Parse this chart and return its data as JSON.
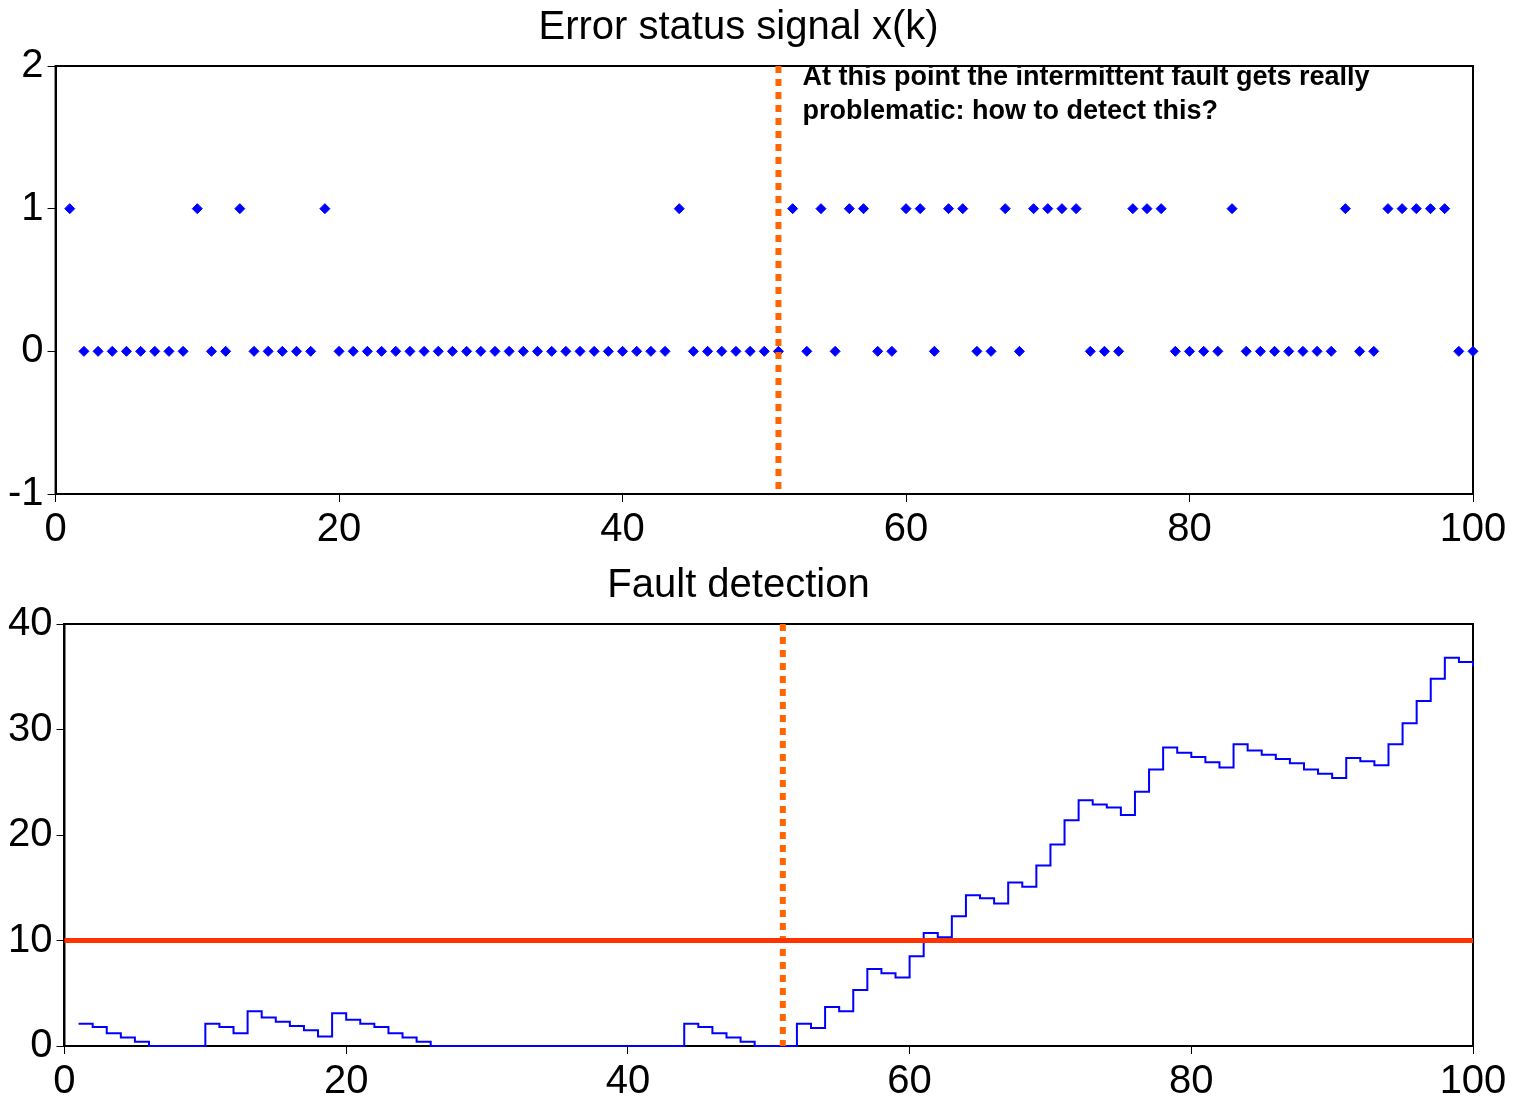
{
  "chart_data": [
    {
      "type": "scatter",
      "title": "Error status signal x(k)",
      "marker": "diamond",
      "grid": false,
      "legend": false,
      "x": [
        1,
        2,
        3,
        4,
        5,
        6,
        7,
        8,
        9,
        10,
        11,
        12,
        13,
        14,
        15,
        16,
        17,
        18,
        19,
        20,
        21,
        22,
        23,
        24,
        25,
        26,
        27,
        28,
        29,
        30,
        31,
        32,
        33,
        34,
        35,
        36,
        37,
        38,
        39,
        40,
        41,
        42,
        43,
        44,
        45,
        46,
        47,
        48,
        49,
        50,
        51,
        52,
        53,
        54,
        55,
        56,
        57,
        58,
        59,
        60,
        61,
        62,
        63,
        64,
        65,
        66,
        67,
        68,
        69,
        70,
        71,
        72,
        73,
        74,
        75,
        76,
        77,
        78,
        79,
        80,
        81,
        82,
        83,
        84,
        85,
        86,
        87,
        88,
        89,
        90,
        91,
        92,
        93,
        94,
        95,
        96,
        97,
        98,
        99,
        100
      ],
      "series": [
        {
          "color": "#0000ff",
          "values": [
            1,
            0,
            0,
            0,
            0,
            0,
            0,
            0,
            0,
            1,
            0,
            0,
            1,
            0,
            0,
            0,
            0,
            0,
            1,
            0,
            0,
            0,
            0,
            0,
            0,
            0,
            0,
            0,
            0,
            0,
            0,
            0,
            0,
            0,
            0,
            0,
            0,
            0,
            0,
            0,
            0,
            0,
            0,
            1,
            0,
            0,
            0,
            0,
            0,
            0,
            0,
            1,
            0,
            1,
            0,
            1,
            1,
            0,
            0,
            1,
            1,
            0,
            1,
            1,
            0,
            0,
            1,
            0,
            1,
            1,
            1,
            1,
            0,
            0,
            0,
            1,
            1,
            1,
            0,
            0,
            0,
            0,
            1,
            0,
            0,
            0,
            0,
            0,
            0,
            0,
            1,
            0,
            0,
            1,
            1,
            1,
            1,
            1,
            0,
            0
          ]
        }
      ],
      "xlim": [
        0,
        100
      ],
      "xticks": [
        0,
        20,
        40,
        60,
        80,
        100
      ],
      "ylim": [
        -1,
        2
      ],
      "yticks": [
        -1,
        0,
        1,
        2
      ],
      "ref_lines": [
        {
          "axis": "x",
          "value": 51,
          "color": "#ff6600",
          "line_style": "dotted"
        }
      ],
      "annotations": [
        {
          "text": "At this point the intermittent fault gets really problematic: how to detect this?",
          "x": 51,
          "y": 1.8
        }
      ]
    },
    {
      "type": "step",
      "title": "Fault detection",
      "grid": false,
      "legend": false,
      "marker": "none",
      "x": [
        1,
        2,
        3,
        4,
        5,
        6,
        7,
        8,
        9,
        10,
        11,
        12,
        13,
        14,
        15,
        16,
        17,
        18,
        19,
        20,
        21,
        22,
        23,
        24,
        25,
        26,
        27,
        28,
        29,
        30,
        31,
        32,
        33,
        34,
        35,
        36,
        37,
        38,
        39,
        40,
        41,
        42,
        43,
        44,
        45,
        46,
        47,
        48,
        49,
        50,
        51,
        52,
        53,
        54,
        55,
        56,
        57,
        58,
        59,
        60,
        61,
        62,
        63,
        64,
        65,
        66,
        67,
        68,
        69,
        70,
        71,
        72,
        73,
        74,
        75,
        76,
        77,
        78,
        79,
        80,
        81,
        82,
        83,
        84,
        85,
        86,
        87,
        88,
        89,
        90,
        91,
        92,
        93,
        94,
        95,
        96,
        97,
        98,
        99,
        100
      ],
      "series": [
        {
          "color": "#0000ff",
          "values": [
            2.1,
            1.8,
            1.2,
            0.8,
            0.4,
            0,
            0,
            0,
            0,
            2.1,
            1.8,
            1.2,
            3.3,
            2.7,
            2.3,
            1.9,
            1.5,
            0.9,
            3.1,
            2.5,
            2.1,
            1.8,
            1.2,
            0.8,
            0.4,
            0,
            0,
            0,
            0,
            0,
            0,
            0,
            0,
            0,
            0,
            0,
            0,
            0,
            0,
            0,
            0,
            0,
            0,
            2.1,
            1.8,
            1.2,
            0.8,
            0.4,
            0,
            0,
            0,
            2.1,
            1.7,
            3.7,
            3.3,
            5.3,
            7.3,
            6.9,
            6.5,
            8.5,
            10.7,
            10.3,
            12.3,
            14.3,
            14,
            13.5,
            15.5,
            15.1,
            17.1,
            19.1,
            21.4,
            23.3,
            22.9,
            22.6,
            21.9,
            24.1,
            26.2,
            28.3,
            27.8,
            27.4,
            26.9,
            26.4,
            28.6,
            28,
            27.6,
            27.2,
            26.8,
            26.2,
            25.8,
            25.4,
            27.3,
            27,
            26.6,
            28.6,
            30.6,
            32.7,
            34.8,
            36.8,
            36.4,
            36
          ]
        }
      ],
      "xlim": [
        0,
        100
      ],
      "xticks": [
        0,
        20,
        40,
        60,
        80,
        100
      ],
      "ylim": [
        0,
        40
      ],
      "yticks": [
        0,
        10,
        20,
        30,
        40
      ],
      "ref_lines": [
        {
          "axis": "x",
          "value": 51,
          "color": "#ff6600",
          "line_style": "dotted"
        },
        {
          "axis": "y",
          "value": 10,
          "color": "#ff3300",
          "line_style": "solid"
        }
      ]
    }
  ]
}
